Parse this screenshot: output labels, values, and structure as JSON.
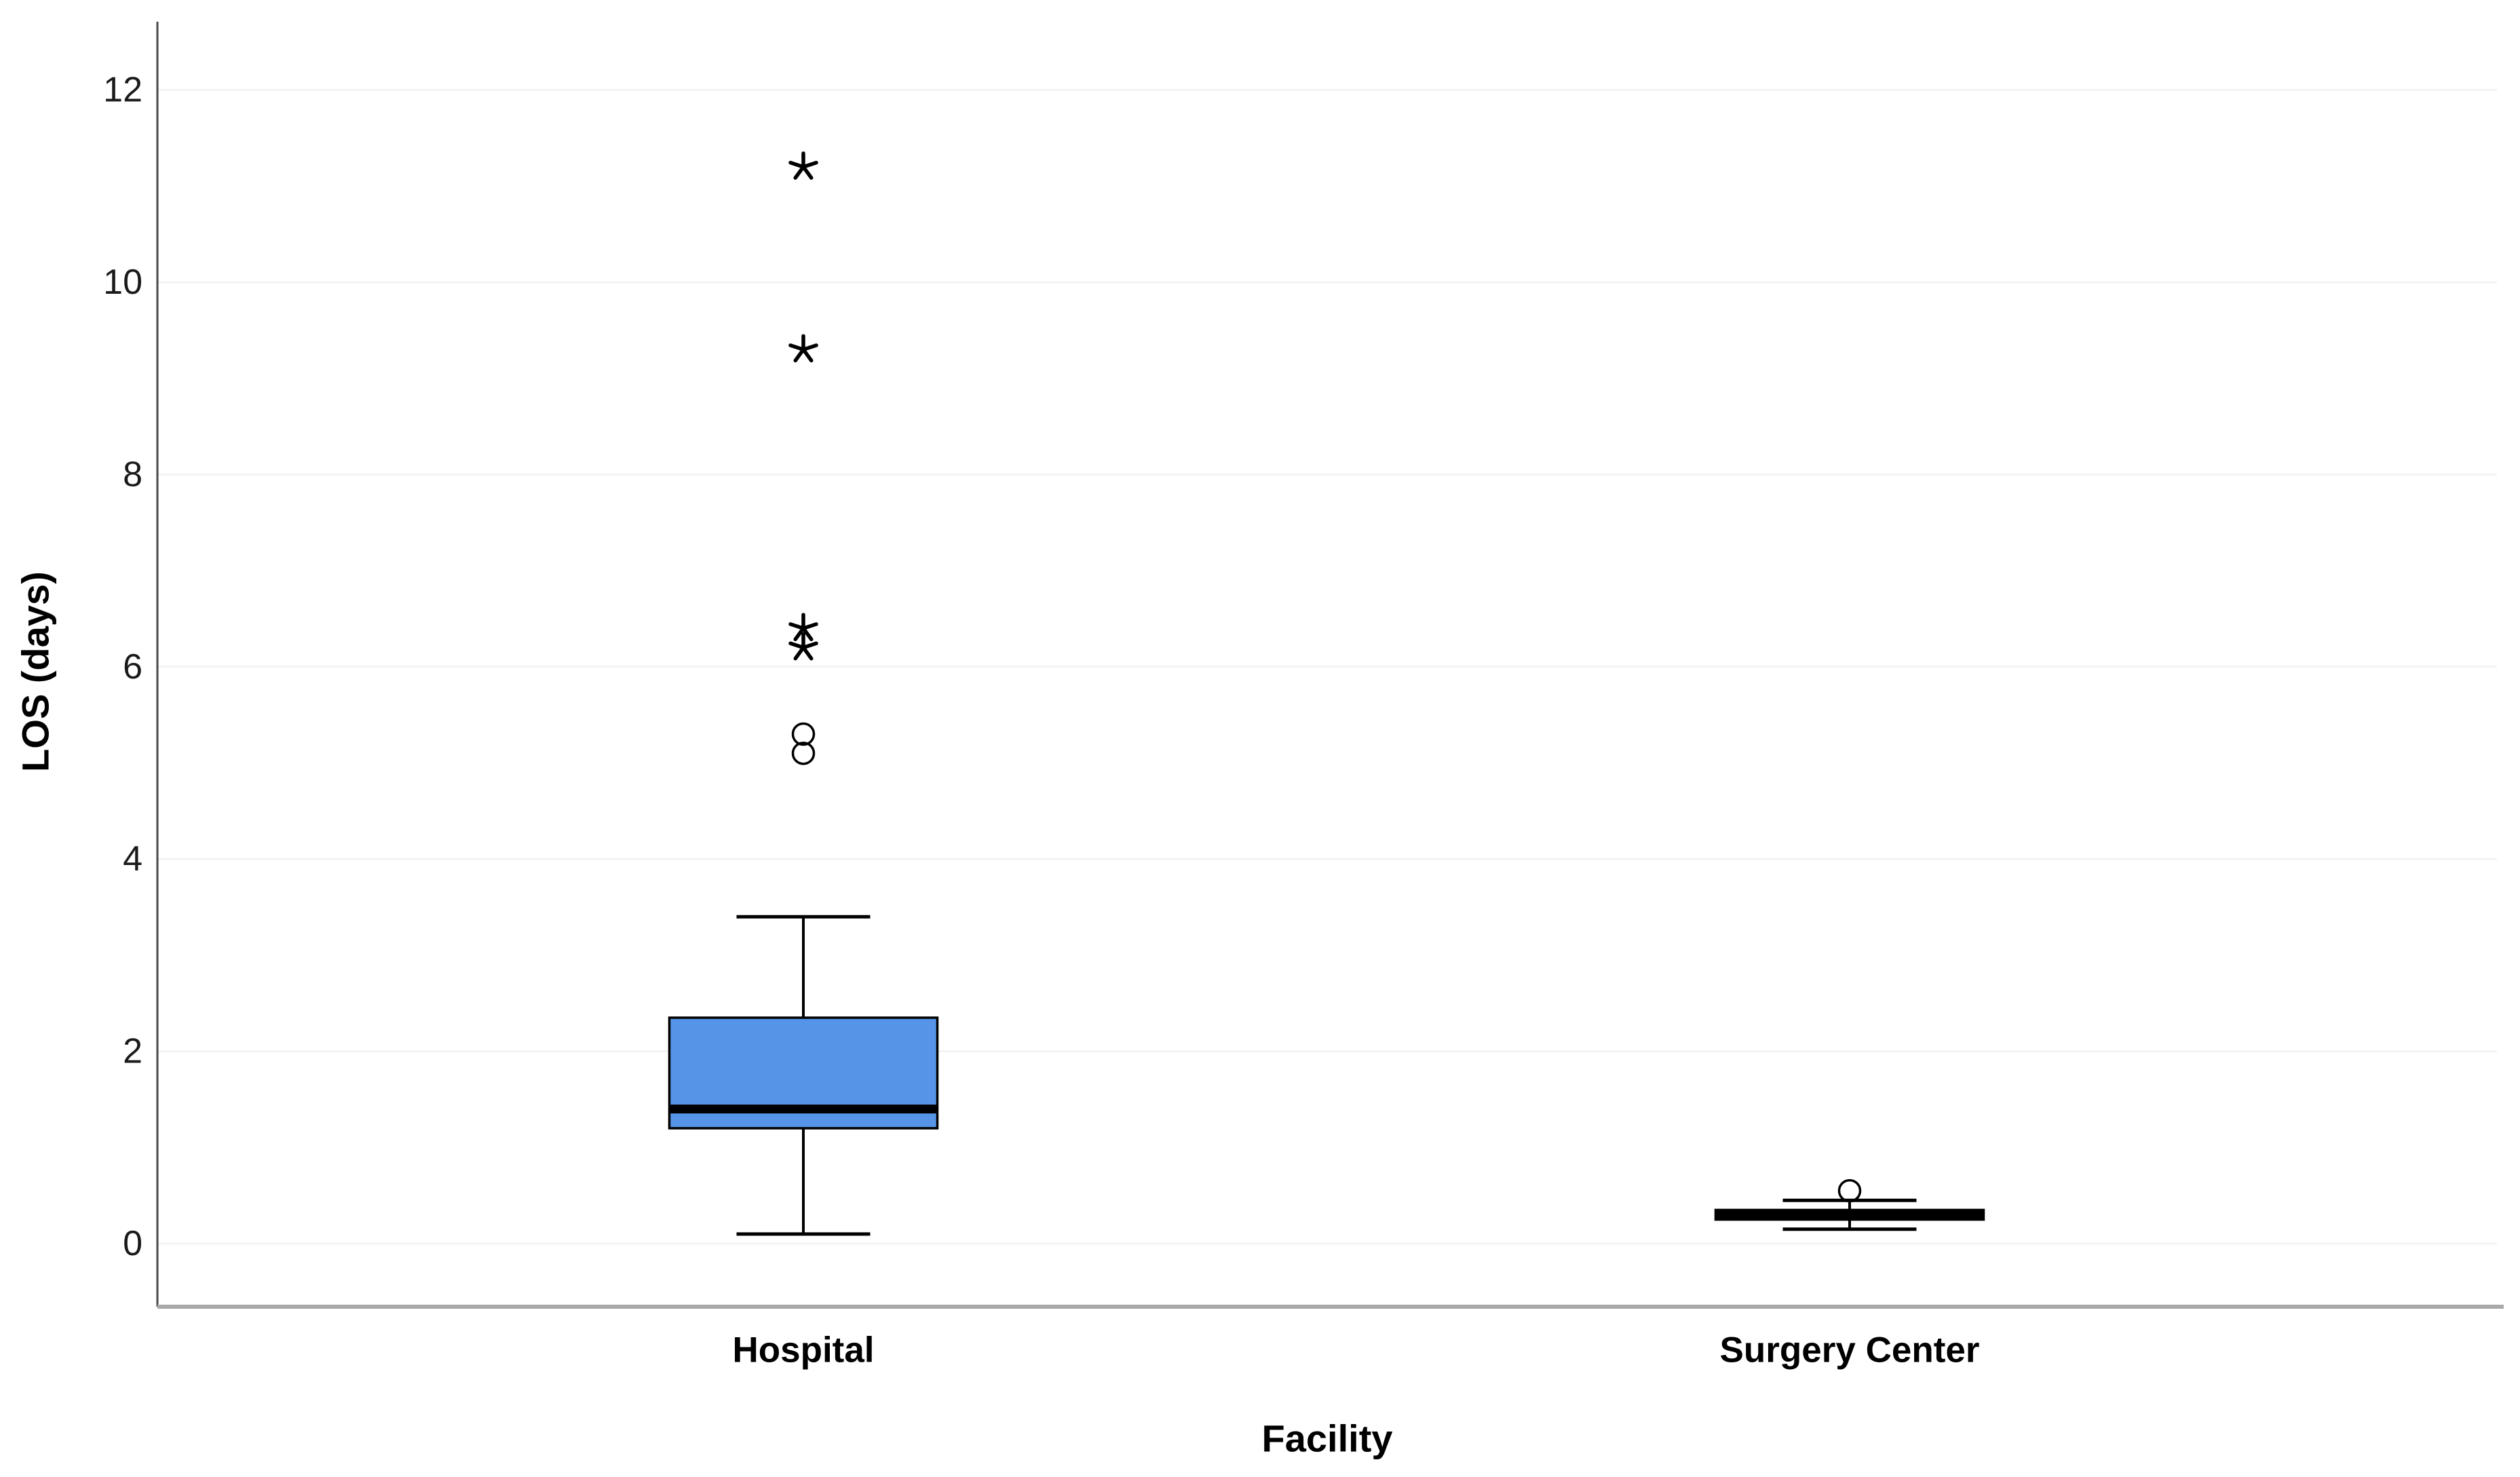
{
  "chart_data": {
    "type": "boxplot",
    "title": "",
    "xlabel": "Facility",
    "ylabel": "LOS (days)",
    "categories": [
      "Hospital",
      "Surgery Center"
    ],
    "series": [
      {
        "name": "Hospital",
        "whisker_low": 0.1,
        "q1": 1.2,
        "median": 1.4,
        "q3": 2.35,
        "whisker_high": 3.4,
        "outliers_mild": [
          5.1,
          5.3
        ],
        "outliers_extreme": [
          6.2,
          6.4,
          9.3,
          11.2
        ]
      },
      {
        "name": "Surgery Center",
        "whisker_low": 0.15,
        "q1": 0.25,
        "median": 0.3,
        "q3": 0.35,
        "whisker_high": 0.45,
        "outliers_mild": [
          0.55
        ],
        "outliers_extreme": []
      }
    ],
    "yticks": [
      0,
      2,
      4,
      6,
      8,
      10,
      12
    ],
    "ytick_labels": [
      "0",
      "2",
      "4",
      "6",
      "8",
      "10",
      "12"
    ],
    "ylim": [
      -0.66,
      12.71
    ],
    "grid": "horizontal light-gray lines at major yticks",
    "legend": "none",
    "outlier_markers": {
      "mild": "open-circle",
      "extreme": "asterisk-star"
    },
    "colors": {
      "box_fill": "#5594E6",
      "box_border": "#000000",
      "median_line": "#000000",
      "whisker": "#000000",
      "gridline": "#F3F3F3",
      "axis_line": "#4A4A4A",
      "baseline": "#A9A9A9",
      "text": "#1A1A1A"
    }
  }
}
